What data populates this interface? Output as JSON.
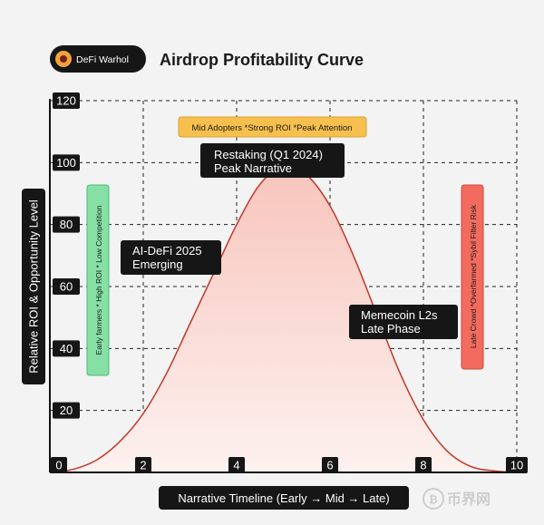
{
  "brand": {
    "name": "DeFi Warhol",
    "logo_icon": "avatar-icon"
  },
  "chart_data": {
    "type": "area",
    "title": "Airdrop Profitability Curve",
    "xlabel": "Narrative Timeline (Early → Mid → Late)",
    "ylabel": "Relative ROI & Opportunity Level",
    "xlim": [
      0,
      10
    ],
    "ylim": [
      0,
      120
    ],
    "xticks": [
      0,
      2,
      4,
      6,
      8,
      10
    ],
    "yticks": [
      0,
      20,
      40,
      60,
      80,
      100,
      120
    ],
    "grid": true,
    "series": [
      {
        "x": [
          0,
          0.5,
          1,
          1.5,
          2,
          2.5,
          3,
          3.5,
          4,
          4.5,
          5,
          5.5,
          6,
          6.5,
          7,
          7.5,
          8,
          8.5,
          9,
          9.5,
          10
        ],
        "values": [
          0,
          1,
          4,
          10,
          19,
          32,
          48,
          64,
          80,
          93,
          99,
          96,
          86,
          70,
          51,
          32,
          17,
          7,
          2,
          0.5,
          0
        ],
        "color": "#c0392b",
        "fill_top": "#f7c5bc",
        "fill_bottom": "#fdf1ef"
      }
    ],
    "annotations": {
      "early": {
        "text": "Early farmers * High ROI * Low Competition",
        "color": "#86e0a6"
      },
      "mid": {
        "text": "Mid Adopters *Strong ROI *Peak Attention",
        "color": "#f7c04e"
      },
      "late": {
        "text": "Late Crowd *Overfarmed *Sybil Filter Risk",
        "color": "#f26b5e"
      },
      "peak": {
        "line1": "Restaking (Q1 2024)",
        "line2": "Peak Narrative"
      },
      "emerging": {
        "line1": "AI-DeFi 2025",
        "line2": "Emerging"
      },
      "late_phase": {
        "line1": "Memecoin L2s",
        "line2": "Late Phase"
      }
    }
  },
  "watermark": {
    "text": "币界网"
  }
}
